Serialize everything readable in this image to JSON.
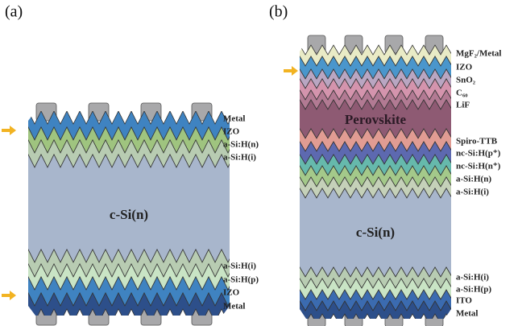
{
  "panel_a": {
    "label": "(a)",
    "center_label": "c-Si(n)",
    "layer_labels": [
      "Metal",
      "IZO",
      "a-Si:H(n)",
      "a-Si:H(i)",
      "a-Si:H(i)",
      "a-Si:H(p)",
      "IZO",
      "Metal"
    ]
  },
  "panel_b": {
    "label": "(b)",
    "center_labels": [
      "Perovskite",
      "c-Si(n)"
    ],
    "layer_labels": [
      "MgF₂/Metal",
      "IZO",
      "SnO₂",
      "C₆₀",
      "LiF",
      "Spiro-TTB",
      "nc-Si:H(p⁺)",
      "nc-Si:H(n⁺)",
      "a-Si:H(n)",
      "a-Si:H(i)",
      "a-Si:H(i)",
      "a-Si:H(p)",
      "ITO",
      "Metal"
    ]
  }
}
